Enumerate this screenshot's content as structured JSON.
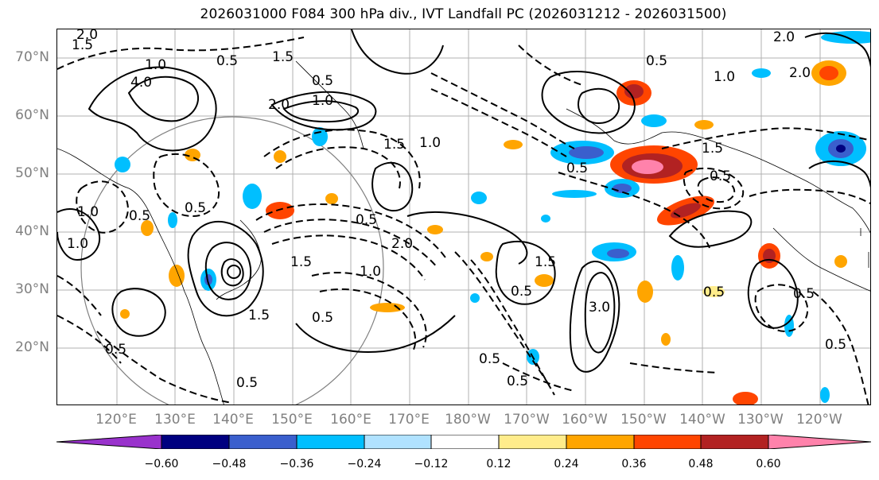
{
  "title": "2026031000 F084 300 hPa div., IVT Landfall PC (2026031212 - 2026031500)",
  "lat_labels": [
    "70°N",
    "60°N",
    "50°N",
    "40°N",
    "30°N",
    "20°N"
  ],
  "lon_labels": [
    "120°E",
    "130°E",
    "140°E",
    "150°E",
    "160°E",
    "170°E",
    "180°W",
    "170°W",
    "160°W",
    "150°W",
    "140°W",
    "130°W",
    "120°W"
  ],
  "colorbar": {
    "colors": [
      "#9932cc",
      "#000080",
      "#3a5fcd",
      "#00bfff",
      "#b0e2ff",
      "#ffffff",
      "#ffec8b",
      "#ffa500",
      "#ff4500",
      "#b22222",
      "#ff82ab"
    ],
    "tick_labels": [
      "−0.60",
      "−0.48",
      "−0.36",
      "−0.24",
      "−0.12",
      "0.12",
      "0.24",
      "0.36",
      "0.48",
      "0.60"
    ]
  },
  "contour_labels": [
    "2.0",
    "1.5",
    "4.0",
    "1.0",
    "0.5",
    "1.5",
    "2.0",
    "0.5",
    "1.0",
    "2.0",
    "1.0",
    "0.5",
    "1.5",
    "1.0",
    "0.5",
    "2.0",
    "1.5",
    "0.5",
    "1.0",
    "0.5",
    "1.0",
    "1.5",
    "1.0",
    "0.5",
    "3.0",
    "0.5",
    "0.5",
    "2.0",
    "1.5",
    "0.5",
    "0.5",
    "1.5",
    "0.5",
    "0.5",
    "0.5",
    "0.5",
    "0.5",
    "0.5"
  ]
}
